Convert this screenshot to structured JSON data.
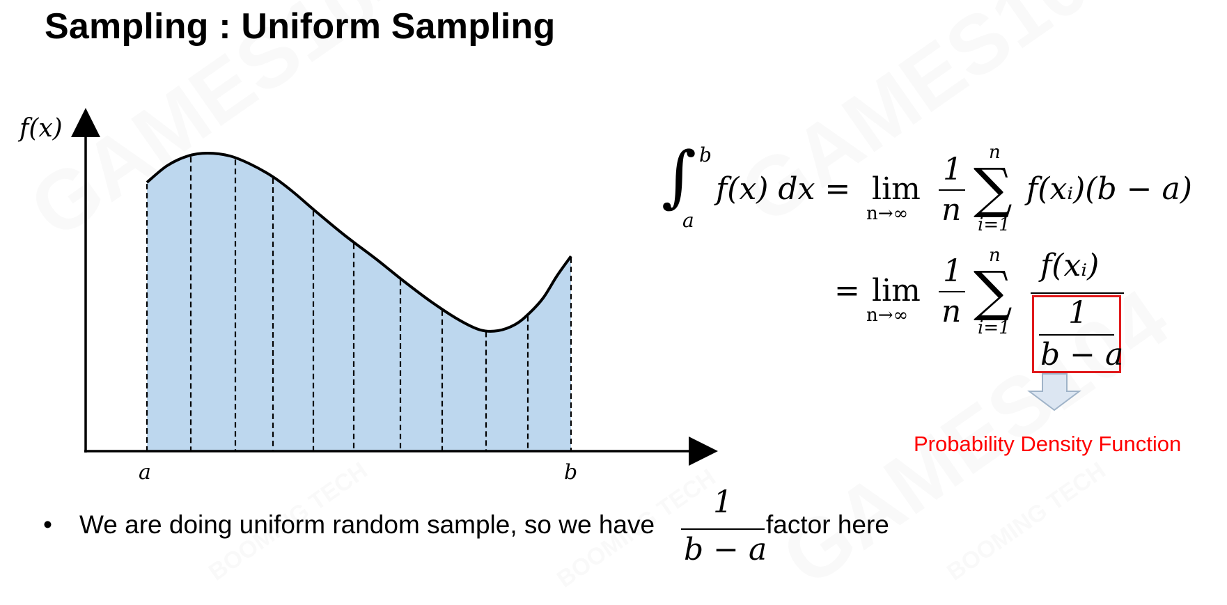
{
  "slide": {
    "title": "Sampling : Uniform Sampling"
  },
  "graph": {
    "y_label": "f(x)",
    "x_label_a": "a",
    "x_label_b": "b",
    "fill_color": "#bdd7ee",
    "sample_count": 11
  },
  "equation": {
    "integral_lower": "a",
    "integral_upper": "b",
    "integrand": "f(x) dx =",
    "lim": "lim",
    "lim_sub": "n→∞",
    "frac_num": "1",
    "frac_den": "n",
    "sum_upper": "n",
    "sum_lower": "i=1",
    "term1": "f(xᵢ)(b − a)",
    "equals2": "=",
    "lim2": "lim",
    "lim2_sub": "n→∞",
    "frac2_num": "1",
    "frac2_den": "n",
    "sum2_upper": "n",
    "sum2_lower": "i=1",
    "term2_num": "f(xᵢ)",
    "pdf_num": "1",
    "pdf_den": "b − a"
  },
  "annotation": {
    "label": "Probability Density Function",
    "color": "#ff0000"
  },
  "bullet": {
    "marker": "•",
    "text_before": "We are doing uniform random sample, so we have",
    "frac_num": "1",
    "frac_den": "b − a",
    "text_after": "factor here"
  },
  "watermarks": [
    "GAMES104",
    "GAMES104",
    "GAMES104",
    "BOOMING TECH",
    "BOOMING TECH",
    "BOOMING TECH"
  ]
}
